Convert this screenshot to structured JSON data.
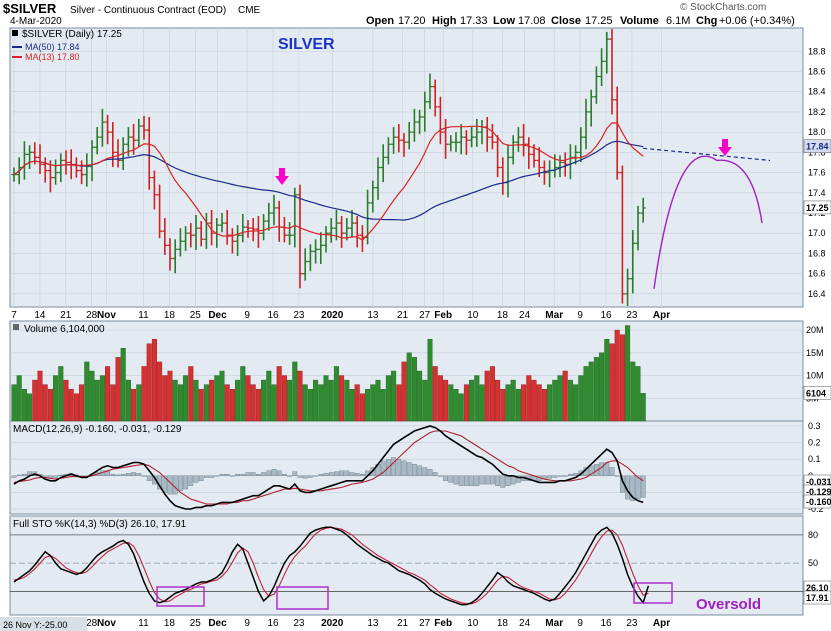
{
  "header": {
    "symbol": "$SILVER",
    "name": "Silver - Continuous Contract (EOD)",
    "exchange": "CME",
    "date": "4-Mar-2020",
    "open_label": "Open",
    "open": "17.20",
    "high_label": "High",
    "high": "17.33",
    "low_label": "Low",
    "low": "17.08",
    "close_label": "Close",
    "close": "17.25",
    "volume_label": "Volume",
    "volume": "6.1M",
    "chg_label": "Chg",
    "chg": "+0.06 (+0.34%)",
    "watermark": "© StockCharts.com"
  },
  "annotations": {
    "title": "SILVER",
    "oversold": "Oversold",
    "footer_label": "26 Nov Y:-25.00"
  },
  "colors": {
    "up": "#2a7a2a",
    "down": "#cc2222",
    "ma50": "#1a2a8a",
    "ma13": "#dd2222",
    "annotation": "#a020c0",
    "arrow": "#ff00cc",
    "panel_bg": "#e3eaf2",
    "grid": "#c6d0dc",
    "hist": "#a8b8c4"
  },
  "chart_data": [
    {
      "type": "line",
      "panel": "price",
      "legend": [
        "$SILVER (Daily) 17.25",
        "MA(50) 17.84",
        "MA(13) 17.80"
      ],
      "y_ticks": [
        16.4,
        16.6,
        16.8,
        17.0,
        17.2,
        17.4,
        17.6,
        17.8,
        18.0,
        18.2,
        18.4,
        18.6,
        18.8
      ],
      "ylim": [
        16.27,
        19.03
      ],
      "x_labels": [
        "7",
        "14",
        "21",
        "28",
        "Nov",
        "11",
        "18",
        "25",
        "Dec",
        "9",
        "16",
        "23",
        "2020",
        "13",
        "21",
        "27",
        "Feb",
        "10",
        "18",
        "24",
        "Mar",
        "9",
        "16",
        "23",
        "Apr"
      ],
      "x_label_days": [
        0,
        7,
        14,
        21,
        25,
        35,
        42,
        49,
        55,
        63,
        70,
        77,
        86,
        97,
        105,
        111,
        116,
        124,
        132,
        138,
        146,
        153,
        160,
        167,
        175
      ],
      "bold_labels": [
        "Nov",
        "Dec",
        "2020",
        "Feb",
        "Mar",
        "Apr"
      ],
      "last_price_label": "17.25",
      "ma50_label": "17.84",
      "closes": [
        17.58,
        17.65,
        17.78,
        17.8,
        17.75,
        17.68,
        17.62,
        17.55,
        17.6,
        17.72,
        17.7,
        17.68,
        17.62,
        17.58,
        17.66,
        17.85,
        17.95,
        18.1,
        18.0,
        17.8,
        17.72,
        17.88,
        17.95,
        17.92,
        18.06,
        18.02,
        17.55,
        17.38,
        17.02,
        16.88,
        16.75,
        16.84,
        16.92,
        17.0,
        16.98,
        17.05,
        16.94,
        17.1,
        17.0,
        17.08,
        17.1,
        16.98,
        16.92,
        16.98,
        17.06,
        17.05,
        17.04,
        17.0,
        17.12,
        17.2,
        17.25,
        17.06,
        16.98,
        16.98,
        17.38,
        16.6,
        16.72,
        16.82,
        16.84,
        16.88,
        17.0,
        17.05,
        17.1,
        17.0,
        17.05,
        17.1,
        16.98,
        16.96,
        17.3,
        17.45,
        17.65,
        17.75,
        17.88,
        17.95,
        17.92,
        17.9,
        18.0,
        18.1,
        18.15,
        18.3,
        18.45,
        18.25,
        18.0,
        17.88,
        17.9,
        17.9,
        17.95,
        17.92,
        17.95,
        18.0,
        18.05,
        17.95,
        17.9,
        17.65,
        17.5,
        17.75,
        17.9,
        17.95,
        17.88,
        17.78,
        17.72,
        17.65,
        17.6,
        17.62,
        17.65,
        17.7,
        17.68,
        17.75,
        17.8,
        17.95,
        18.2,
        18.35,
        18.55,
        18.7,
        18.92,
        18.32,
        17.6,
        16.4,
        16.55,
        16.9,
        17.2,
        17.25
      ],
      "projection": {
        "ma50_extension": [
          17.84,
          17.72
        ],
        "arc_start": 16.45,
        "arc_peak": 17.72,
        "arc_end": 17.1
      }
    },
    {
      "type": "bar",
      "panel": "volume",
      "legend": "Volume 6,104,000",
      "y_ticks": [
        5,
        10,
        15,
        20
      ],
      "y_tick_labels": [
        "5M",
        "10M",
        "15M",
        "20M"
      ],
      "ylim": [
        0,
        22
      ],
      "units": "millions",
      "last_label": "6104",
      "values": [
        8,
        10,
        7,
        6,
        9,
        11,
        8,
        7,
        10,
        12,
        9,
        7,
        6,
        8,
        13,
        11,
        9,
        10,
        12,
        8,
        14,
        16,
        9,
        7,
        8,
        12,
        17,
        18,
        13,
        10,
        11,
        9,
        8,
        10,
        12,
        9,
        7,
        8,
        9,
        10,
        11,
        8,
        7,
        9,
        12,
        10,
        8,
        7,
        9,
        11,
        8,
        12,
        10,
        9,
        13,
        11,
        8,
        7,
        9,
        8,
        10,
        9,
        12,
        10,
        9,
        7,
        8,
        6,
        7,
        8,
        9,
        7,
        10,
        11,
        8,
        13,
        15,
        14,
        11,
        9,
        18,
        12,
        10,
        9,
        8,
        7,
        6,
        8,
        9,
        10,
        8,
        11,
        12,
        9,
        7,
        8,
        9,
        7,
        8,
        10,
        9,
        8,
        7,
        8,
        9,
        10,
        11,
        9,
        8,
        10,
        12,
        13,
        14,
        15,
        18,
        17,
        20,
        19,
        21,
        13,
        12,
        6.1
      ]
    },
    {
      "type": "line",
      "panel": "macd",
      "legend": "MACD(12,26,9) -0.160, -0.031, -0.129",
      "y_ticks": [
        -0.2,
        -0.1,
        0.0,
        0.1,
        0.2,
        0.3
      ],
      "ylim": [
        -0.23,
        0.33
      ],
      "last_labels": [
        "-0.031",
        "-0.129",
        "-0.160"
      ],
      "macd": [
        -0.05,
        -0.03,
        -0.02,
        0.0,
        0.01,
        0.0,
        -0.02,
        -0.03,
        -0.03,
        -0.01,
        0.0,
        0.01,
        0.0,
        -0.01,
        -0.01,
        0.01,
        0.03,
        0.05,
        0.06,
        0.05,
        0.05,
        0.06,
        0.07,
        0.08,
        0.08,
        0.07,
        0.03,
        -0.01,
        -0.06,
        -0.11,
        -0.15,
        -0.18,
        -0.19,
        -0.2,
        -0.2,
        -0.19,
        -0.19,
        -0.18,
        -0.18,
        -0.17,
        -0.16,
        -0.16,
        -0.16,
        -0.15,
        -0.14,
        -0.13,
        -0.12,
        -0.12,
        -0.1,
        -0.08,
        -0.06,
        -0.06,
        -0.07,
        -0.08,
        -0.05,
        -0.09,
        -0.1,
        -0.1,
        -0.09,
        -0.08,
        -0.07,
        -0.06,
        -0.05,
        -0.04,
        -0.03,
        -0.03,
        -0.03,
        -0.03,
        0.0,
        0.03,
        0.07,
        0.11,
        0.15,
        0.19,
        0.21,
        0.23,
        0.25,
        0.27,
        0.28,
        0.29,
        0.3,
        0.29,
        0.27,
        0.24,
        0.22,
        0.2,
        0.18,
        0.16,
        0.14,
        0.12,
        0.11,
        0.09,
        0.07,
        0.04,
        0.01,
        0.0,
        0.0,
        -0.01,
        -0.01,
        -0.02,
        -0.03,
        -0.04,
        -0.04,
        -0.04,
        -0.04,
        -0.03,
        -0.03,
        -0.02,
        -0.01,
        0.01,
        0.04,
        0.07,
        0.1,
        0.13,
        0.16,
        0.14,
        0.09,
        -0.03,
        -0.09,
        -0.13,
        -0.15,
        -0.16
      ],
      "signal": [
        -0.04,
        -0.035,
        -0.03,
        -0.025,
        -0.015,
        -0.01,
        -0.01,
        -0.015,
        -0.02,
        -0.015,
        -0.01,
        -0.005,
        -0.005,
        -0.005,
        -0.005,
        0.0,
        0.01,
        0.02,
        0.03,
        0.04,
        0.045,
        0.05,
        0.055,
        0.06,
        0.065,
        0.07,
        0.06,
        0.04,
        0.02,
        -0.01,
        -0.04,
        -0.07,
        -0.1,
        -0.12,
        -0.14,
        -0.15,
        -0.16,
        -0.17,
        -0.17,
        -0.17,
        -0.17,
        -0.17,
        -0.16,
        -0.16,
        -0.15,
        -0.15,
        -0.14,
        -0.13,
        -0.12,
        -0.11,
        -0.1,
        -0.09,
        -0.08,
        -0.08,
        -0.075,
        -0.08,
        -0.085,
        -0.09,
        -0.09,
        -0.09,
        -0.085,
        -0.08,
        -0.075,
        -0.07,
        -0.06,
        -0.05,
        -0.045,
        -0.04,
        -0.03,
        -0.02,
        0.0,
        0.02,
        0.05,
        0.08,
        0.11,
        0.14,
        0.17,
        0.2,
        0.22,
        0.24,
        0.26,
        0.27,
        0.27,
        0.27,
        0.26,
        0.25,
        0.24,
        0.22,
        0.2,
        0.18,
        0.16,
        0.14,
        0.12,
        0.1,
        0.08,
        0.06,
        0.05,
        0.03,
        0.02,
        0.01,
        0.0,
        -0.01,
        -0.02,
        -0.025,
        -0.03,
        -0.03,
        -0.03,
        -0.03,
        -0.025,
        -0.02,
        -0.01,
        0.01,
        0.03,
        0.05,
        0.08,
        0.09,
        0.09,
        0.07,
        0.05,
        0.02,
        -0.01,
        -0.03
      ]
    },
    {
      "type": "line",
      "panel": "stochastic",
      "legend": "Full STO %K(14,3) %D(3) 26.10, 17.91",
      "y_ticks": [
        20,
        50,
        80
      ],
      "ylim": [
        -5,
        100
      ],
      "last_labels": [
        "26.10",
        "17.91"
      ],
      "k": [
        30,
        34,
        38,
        42,
        48,
        55,
        62,
        58,
        50,
        44,
        42,
        40,
        38,
        40,
        45,
        52,
        58,
        62,
        65,
        68,
        72,
        74,
        70,
        60,
        45,
        30,
        18,
        10,
        8,
        10,
        14,
        18,
        20,
        22,
        25,
        28,
        30,
        30,
        32,
        35,
        40,
        50,
        62,
        70,
        65,
        50,
        35,
        20,
        10,
        15,
        25,
        38,
        50,
        58,
        62,
        68,
        75,
        82,
        85,
        87,
        88,
        88,
        86,
        84,
        80,
        75,
        70,
        66,
        62,
        58,
        55,
        52,
        50,
        46,
        42,
        40,
        38,
        35,
        32,
        28,
        22,
        18,
        15,
        12,
        10,
        8,
        6,
        6,
        8,
        12,
        18,
        25,
        32,
        40,
        36,
        30,
        26,
        24,
        22,
        20,
        18,
        15,
        12,
        10,
        12,
        18,
        25,
        32,
        40,
        50,
        60,
        70,
        80,
        85,
        88,
        82,
        70,
        55,
        38,
        25,
        15,
        8,
        26
      ],
      "d": [
        32,
        33,
        35,
        39,
        44,
        50,
        56,
        58,
        55,
        50,
        45,
        42,
        40,
        39,
        41,
        46,
        52,
        57,
        62,
        65,
        68,
        71,
        72,
        68,
        58,
        45,
        31,
        19,
        12,
        9,
        10,
        14,
        17,
        20,
        22,
        25,
        28,
        29,
        31,
        32,
        36,
        42,
        51,
        61,
        66,
        62,
        50,
        35,
        22,
        15,
        17,
        26,
        38,
        49,
        57,
        63,
        68,
        75,
        81,
        85,
        87,
        88,
        87,
        86,
        83,
        80,
        75,
        70,
        66,
        62,
        58,
        55,
        52,
        49,
        46,
        43,
        40,
        38,
        35,
        32,
        27,
        23,
        18,
        15,
        12,
        10,
        8,
        7,
        7,
        9,
        13,
        18,
        25,
        32,
        36,
        35,
        31,
        27,
        24,
        22,
        20,
        18,
        15,
        12,
        11,
        13,
        18,
        25,
        32,
        41,
        50,
        60,
        70,
        78,
        84,
        85,
        80,
        69,
        54,
        39,
        26,
        16,
        18
      ]
    }
  ]
}
